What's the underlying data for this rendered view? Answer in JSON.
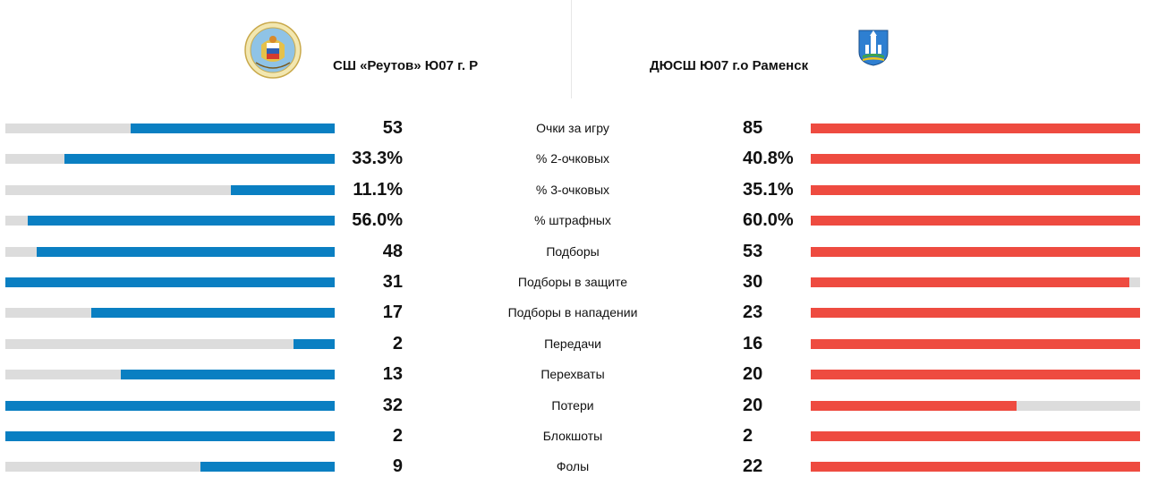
{
  "home_team": {
    "name": "СШ «Реутов» Ю07 г. Р",
    "logo_icon": "reutov-school-emblem-icon",
    "color": "#0a7fc2"
  },
  "away_team": {
    "name": "ДЮСШ Ю07 г.о Раменск",
    "logo_icon": "ramenskoye-coat-of-arms-icon",
    "color": "#ee4b40"
  },
  "track_color": "#dcdcdc",
  "stats": [
    {
      "label": "Очки за игру",
      "home": "53",
      "away": "85",
      "home_share": 0.62,
      "away_share": 1.0
    },
    {
      "label": "% 2-очковых",
      "home": "33.3%",
      "away": "40.8%",
      "home_share": 0.82,
      "away_share": 1.0
    },
    {
      "label": "% 3-очковых",
      "home": "11.1%",
      "away": "35.1%",
      "home_share": 0.315,
      "away_share": 1.0
    },
    {
      "label": "% штрафных",
      "home": "56.0%",
      "away": "60.0%",
      "home_share": 0.933,
      "away_share": 1.0
    },
    {
      "label": "Подборы",
      "home": "48",
      "away": "53",
      "home_share": 0.905,
      "away_share": 1.0
    },
    {
      "label": "Подборы в защите",
      "home": "31",
      "away": "30",
      "home_share": 1.0,
      "away_share": 0.968
    },
    {
      "label": "Подборы в нападении",
      "home": "17",
      "away": "23",
      "home_share": 0.739,
      "away_share": 1.0
    },
    {
      "label": "Передачи",
      "home": "2",
      "away": "16",
      "home_share": 0.125,
      "away_share": 1.0
    },
    {
      "label": "Перехваты",
      "home": "13",
      "away": "20",
      "home_share": 0.65,
      "away_share": 1.0
    },
    {
      "label": "Потери",
      "home": "32",
      "away": "20",
      "home_share": 1.0,
      "away_share": 0.625
    },
    {
      "label": "Блокшоты",
      "home": "2",
      "away": "2",
      "home_share": 1.0,
      "away_share": 1.0
    },
    {
      "label": "Фолы",
      "home": "9",
      "away": "22",
      "home_share": 0.409,
      "away_share": 1.0
    }
  ]
}
